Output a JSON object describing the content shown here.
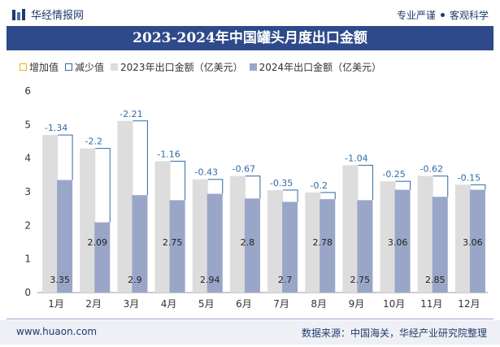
{
  "header": {
    "brand": "华经情报网",
    "slogan_left": "专业严谨",
    "slogan_right": "客观科学"
  },
  "footer": {
    "website": "www.huaon.com",
    "source": "数据来源：中国海关，华经产业研究院整理"
  },
  "colors": {
    "title_bg": "#2e4a8a",
    "bar_2023": "#dddddd",
    "bar_2024": "#9aa6c8",
    "increase": "#f0b400",
    "decrease": "#2f6aa6"
  },
  "chart_data": {
    "type": "bar",
    "title": "2023-2024年中国罐头月度出口金额",
    "legend": [
      "增加值",
      "减少值",
      "2023年出口金额（亿美元）",
      "2024年出口金额（亿美元）"
    ],
    "categories": [
      "1月",
      "2月",
      "3月",
      "4月",
      "5月",
      "6月",
      "7月",
      "8月",
      "9月",
      "10月",
      "11月",
      "12月"
    ],
    "series": [
      {
        "name": "2023年出口金额（亿美元）",
        "values": [
          4.69,
          4.29,
          5.11,
          3.91,
          3.37,
          3.47,
          3.05,
          2.98,
          3.79,
          3.31,
          3.47,
          3.21
        ]
      },
      {
        "name": "2024年出口金额（亿美元）",
        "values": [
          3.35,
          2.09,
          2.9,
          2.75,
          2.94,
          2.8,
          2.7,
          2.78,
          2.75,
          3.06,
          2.85,
          3.06
        ]
      }
    ],
    "changes": [
      -1.34,
      -2.2,
      -2.21,
      -1.16,
      -0.43,
      -0.67,
      -0.35,
      -0.2,
      -1.04,
      -0.25,
      -0.62,
      -0.15
    ],
    "ylim": [
      0,
      6
    ],
    "yticks": [
      0,
      1,
      2,
      3,
      4,
      5,
      6
    ],
    "grid": false,
    "legend_position": "top-left"
  }
}
